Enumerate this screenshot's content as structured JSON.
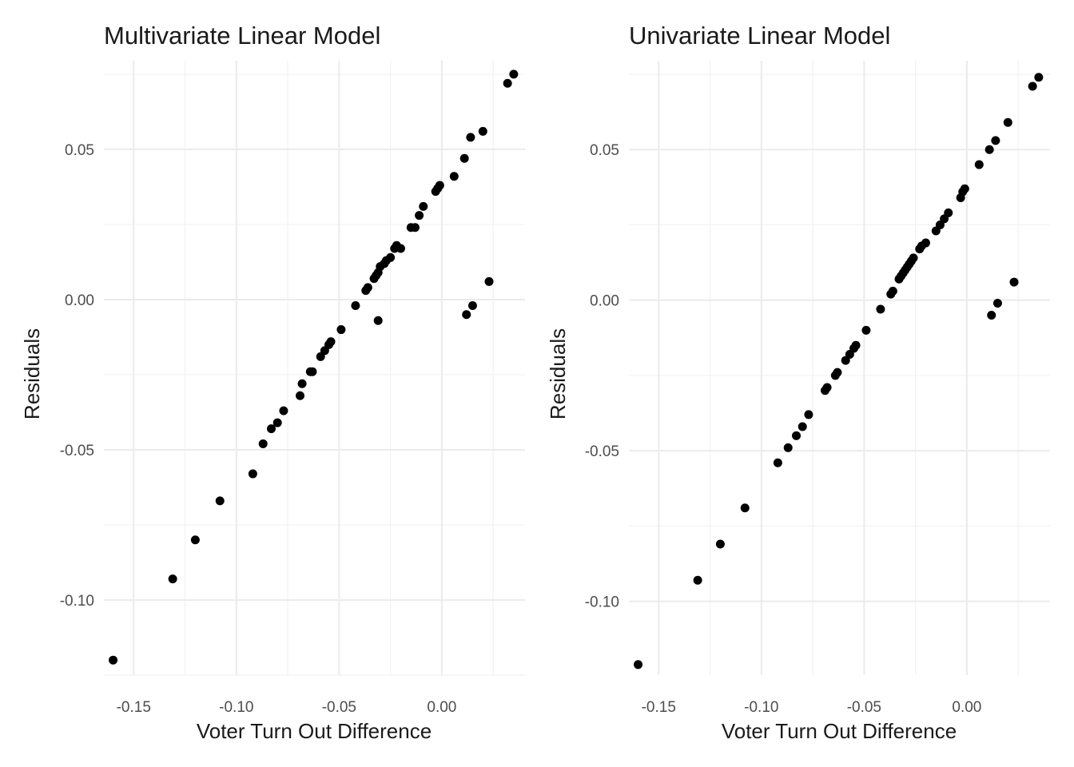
{
  "chart_data": [
    {
      "type": "scatter",
      "title": "Multivariate Linear Model",
      "xlabel": "Voter Turn Out Difference",
      "ylabel": "Residuals",
      "xlim": [
        -0.1645,
        0.0405
      ],
      "ylim": [
        -0.125,
        0.0795
      ],
      "xticks": [
        -0.15,
        -0.1,
        -0.05,
        0.0
      ],
      "xtick_labels": [
        "-0.15",
        "-0.10",
        "-0.05",
        "0.00"
      ],
      "yticks": [
        -0.1,
        -0.05,
        0.0,
        0.05
      ],
      "ytick_labels": [
        "-0.10",
        "-0.05",
        "0.00",
        "0.05"
      ],
      "grid": true,
      "x": [
        -0.16,
        -0.131,
        -0.12,
        -0.108,
        -0.092,
        -0.087,
        -0.083,
        -0.08,
        -0.077,
        -0.069,
        -0.068,
        -0.064,
        -0.063,
        -0.059,
        -0.057,
        -0.055,
        -0.054,
        -0.049,
        -0.042,
        -0.037,
        -0.036,
        -0.033,
        -0.032,
        -0.031,
        -0.03,
        -0.028,
        -0.027,
        -0.025,
        -0.023,
        -0.022,
        -0.02,
        -0.015,
        -0.013,
        -0.011,
        -0.009,
        -0.003,
        -0.002,
        -0.001,
        0.006,
        0.011,
        0.014,
        0.02,
        0.032,
        0.035,
        -0.031,
        0.012,
        0.015,
        0.023
      ],
      "y": [
        -0.12,
        -0.093,
        -0.08,
        -0.067,
        -0.058,
        -0.048,
        -0.043,
        -0.041,
        -0.037,
        -0.032,
        -0.028,
        -0.024,
        -0.024,
        -0.019,
        -0.017,
        -0.015,
        -0.014,
        -0.01,
        -0.002,
        0.003,
        0.004,
        0.007,
        0.008,
        0.009,
        0.011,
        0.012,
        0.013,
        0.014,
        0.017,
        0.018,
        0.017,
        0.024,
        0.024,
        0.028,
        0.031,
        0.036,
        0.037,
        0.038,
        0.041,
        0.047,
        0.054,
        0.056,
        0.072,
        0.075,
        -0.007,
        -0.005,
        -0.002,
        0.006
      ]
    },
    {
      "type": "scatter",
      "title": "Univariate Linear Model",
      "xlabel": "Voter Turn Out Difference",
      "ylabel": "Residuals",
      "xlim": [
        -0.1645,
        0.0405
      ],
      "ylim": [
        -0.1245,
        0.0795
      ],
      "xticks": [
        -0.15,
        -0.1,
        -0.05,
        0.0
      ],
      "xtick_labels": [
        "-0.15",
        "-0.10",
        "-0.05",
        "0.00"
      ],
      "yticks": [
        -0.1,
        -0.05,
        0.0,
        0.05
      ],
      "ytick_labels": [
        "-0.10",
        "-0.05",
        "0.00",
        "0.05"
      ],
      "grid": true,
      "x": [
        -0.16,
        -0.131,
        -0.12,
        -0.108,
        -0.092,
        -0.087,
        -0.083,
        -0.08,
        -0.077,
        -0.069,
        -0.068,
        -0.064,
        -0.063,
        -0.059,
        -0.057,
        -0.055,
        -0.054,
        -0.049,
        -0.042,
        -0.037,
        -0.036,
        -0.033,
        -0.032,
        -0.031,
        -0.03,
        -0.029,
        -0.028,
        -0.027,
        -0.026,
        -0.023,
        -0.022,
        -0.02,
        -0.015,
        -0.013,
        -0.011,
        -0.009,
        -0.003,
        -0.002,
        -0.001,
        0.006,
        0.011,
        0.014,
        0.02,
        0.032,
        0.035,
        0.012,
        0.015,
        0.023
      ],
      "y": [
        -0.121,
        -0.093,
        -0.081,
        -0.069,
        -0.054,
        -0.049,
        -0.045,
        -0.042,
        -0.038,
        -0.03,
        -0.029,
        -0.025,
        -0.024,
        -0.02,
        -0.018,
        -0.016,
        -0.015,
        -0.01,
        -0.003,
        0.002,
        0.003,
        0.007,
        0.008,
        0.009,
        0.01,
        0.011,
        0.012,
        0.013,
        0.014,
        0.017,
        0.018,
        0.019,
        0.023,
        0.025,
        0.027,
        0.029,
        0.034,
        0.036,
        0.037,
        0.045,
        0.05,
        0.053,
        0.059,
        0.071,
        0.074,
        -0.005,
        -0.001,
        0.006
      ]
    }
  ]
}
